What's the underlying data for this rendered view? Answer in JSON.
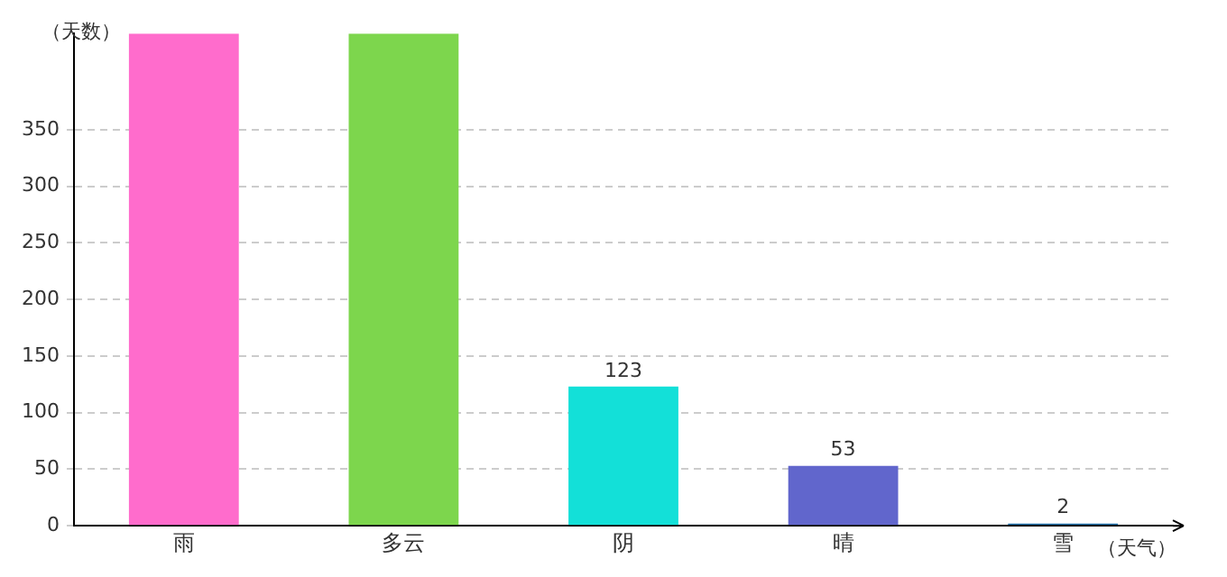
{
  "chart_data": {
    "type": "bar",
    "xlabel": "（天气）",
    "ylabel": "（天数）",
    "categories": [
      "雨",
      "多云",
      "阴",
      "晴",
      "雪"
    ],
    "values": [
      435,
      435,
      123,
      53,
      2
    ],
    "colors": [
      "#ff6ccc",
      "#7dd64d",
      "#13e0d8",
      "#6166cc",
      "#1f6ea8"
    ],
    "value_labels": [
      null,
      null,
      "123",
      "53",
      "2"
    ],
    "ylim": [
      0,
      435
    ],
    "yticks": [
      0,
      50,
      100,
      150,
      200,
      250,
      300,
      350
    ],
    "grid": "y",
    "legend": false
  }
}
